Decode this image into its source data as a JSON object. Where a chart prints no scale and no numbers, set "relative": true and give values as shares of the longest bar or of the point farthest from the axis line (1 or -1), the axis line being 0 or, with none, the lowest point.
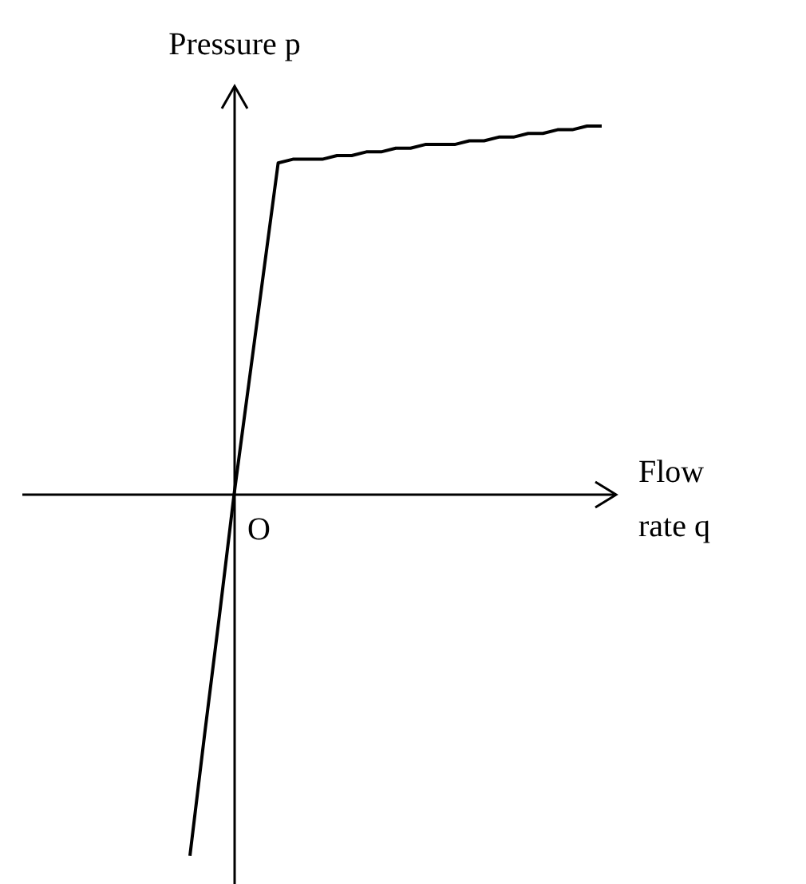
{
  "chart_data": {
    "type": "line",
    "relative": true,
    "xlabel": "Flow rate q",
    "ylabel": "Pressure p",
    "annotations": [
      "O"
    ],
    "color": "#000000",
    "marker": "none",
    "line_style": "solid",
    "categories": [
      null,
      null,
      null,
      null,
      null,
      null,
      null,
      null,
      null,
      null,
      null,
      null,
      null,
      null,
      null,
      null,
      null,
      null,
      null,
      null,
      null,
      null,
      null,
      null,
      null,
      null,
      null,
      null,
      null
    ],
    "values": [
      -0.98,
      -0.65,
      -0.33,
      0,
      0.3,
      0.6,
      0.9,
      0.91,
      0.91,
      0.91,
      0.92,
      0.92,
      0.93,
      0.93,
      0.94,
      0.94,
      0.95,
      0.95,
      0.95,
      0.96,
      0.96,
      0.97,
      0.97,
      0.98,
      0.98,
      0.99,
      0.99,
      1.0,
      1.0
    ]
  }
}
